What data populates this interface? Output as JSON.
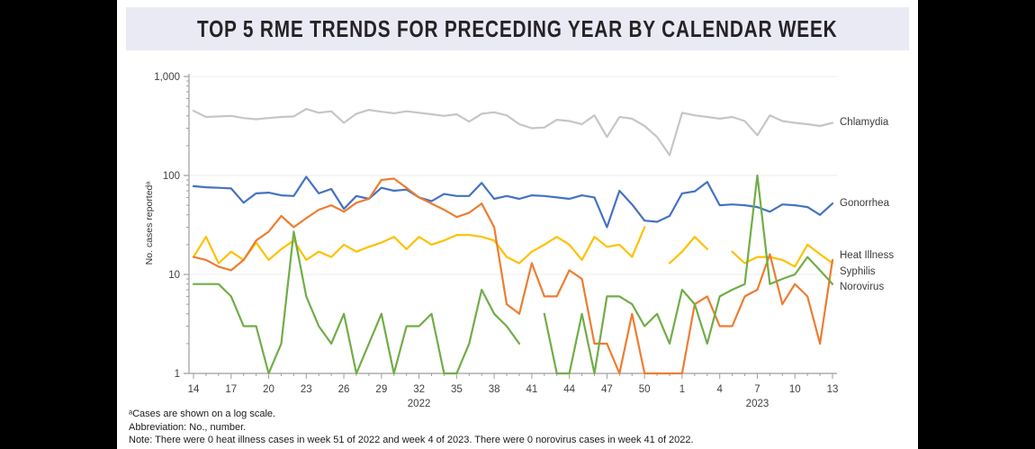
{
  "title": "TOP 5 RME TRENDS FOR PRECEDING YEAR BY CALENDAR WEEK",
  "y_axis_label": "No. cases reportedᵃ",
  "footnotes": [
    "ᵃCases are shown on a log scale.",
    "Abbreviation: No., number.",
    "Note: There were 0 heat illness cases in week 51 of 2022 and week 4 of 2023. There were 0 norovirus cases in week 41 of 2022."
  ],
  "chart_data": {
    "type": "line",
    "y_scale": "log",
    "ylim": [
      1,
      1000
    ],
    "grid": "horizontal-major",
    "legend_position": "right-of-line-ends",
    "y_ticks": [
      {
        "value": 1000,
        "label": "1,000"
      },
      {
        "value": 100,
        "label": "100"
      },
      {
        "value": 10,
        "label": "10"
      },
      {
        "value": 1,
        "label": "1"
      }
    ],
    "x_weeks": [
      14,
      15,
      16,
      17,
      18,
      19,
      20,
      21,
      22,
      23,
      24,
      25,
      26,
      27,
      28,
      29,
      30,
      31,
      32,
      33,
      34,
      35,
      36,
      37,
      38,
      39,
      40,
      41,
      42,
      43,
      44,
      45,
      46,
      47,
      48,
      49,
      50,
      51,
      52,
      1,
      2,
      3,
      4,
      5,
      6,
      7,
      8,
      9,
      10,
      11,
      12,
      13
    ],
    "x_tick_every": 3,
    "year_labels": [
      {
        "label": "2022",
        "week_index": 18
      },
      {
        "label": "2023",
        "week_index": 45
      }
    ],
    "series": [
      {
        "name": "Chlamydia",
        "color": "#c6c6c6",
        "values": [
          450,
          390,
          395,
          400,
          380,
          370,
          380,
          390,
          395,
          470,
          430,
          445,
          340,
          420,
          460,
          440,
          425,
          445,
          430,
          415,
          400,
          415,
          350,
          420,
          435,
          405,
          330,
          300,
          305,
          365,
          355,
          330,
          405,
          245,
          390,
          375,
          316,
          245,
          160,
          430,
          405,
          390,
          375,
          390,
          355,
          255,
          405,
          355,
          340,
          330,
          316,
          340
        ]
      },
      {
        "name": "Gonorrhea",
        "color": "#4472c4",
        "values": [
          78,
          76,
          75,
          74,
          53,
          66,
          67,
          63,
          62,
          97,
          66,
          73,
          46,
          62,
          58,
          75,
          70,
          72,
          60,
          55,
          65,
          62,
          62,
          84,
          58,
          62,
          58,
          63,
          62,
          60,
          58,
          63,
          60,
          30,
          70,
          51,
          35,
          34,
          39,
          66,
          69,
          86,
          50,
          51,
          50,
          48,
          43,
          51,
          50,
          48,
          40,
          52
        ]
      },
      {
        "name": "Heat Illness",
        "color": "#ffc000",
        "values": [
          15,
          24,
          13,
          17,
          14,
          21,
          14,
          18,
          22,
          14,
          17,
          15,
          20,
          17,
          19,
          21,
          24,
          18,
          24,
          20,
          22,
          25,
          25,
          24,
          22,
          15,
          13,
          17,
          20,
          24,
          20,
          14,
          24,
          19,
          20,
          15,
          30,
          null,
          13,
          17,
          24,
          18,
          null,
          17,
          13,
          15,
          15,
          14,
          12,
          20,
          16,
          13
        ]
      },
      {
        "name": "Syphilis",
        "color": "#ed7d31",
        "values": [
          15,
          14,
          12,
          11,
          14,
          22,
          27,
          39,
          30,
          37,
          45,
          50,
          43,
          53,
          58,
          90,
          93,
          75,
          60,
          52,
          45,
          38,
          42,
          52,
          30,
          5,
          4,
          13,
          6,
          6,
          11,
          9,
          2,
          2,
          1,
          4,
          1,
          1,
          1,
          1,
          5,
          6,
          3,
          3,
          6,
          7,
          16,
          5,
          8,
          6,
          2,
          14
        ]
      },
      {
        "name": "Norovirus",
        "color": "#70ad47",
        "values": [
          8,
          8,
          8,
          6,
          3,
          3,
          1,
          2,
          27,
          6,
          3,
          2,
          4,
          1,
          2,
          4,
          1,
          3,
          3,
          4,
          1,
          1,
          2,
          7,
          4,
          3,
          2,
          null,
          4,
          1,
          1,
          4,
          1,
          6,
          6,
          5,
          3,
          4,
          2,
          7,
          5,
          2,
          6,
          7,
          8,
          100,
          8,
          9,
          10,
          15,
          11,
          8
        ]
      }
    ]
  }
}
